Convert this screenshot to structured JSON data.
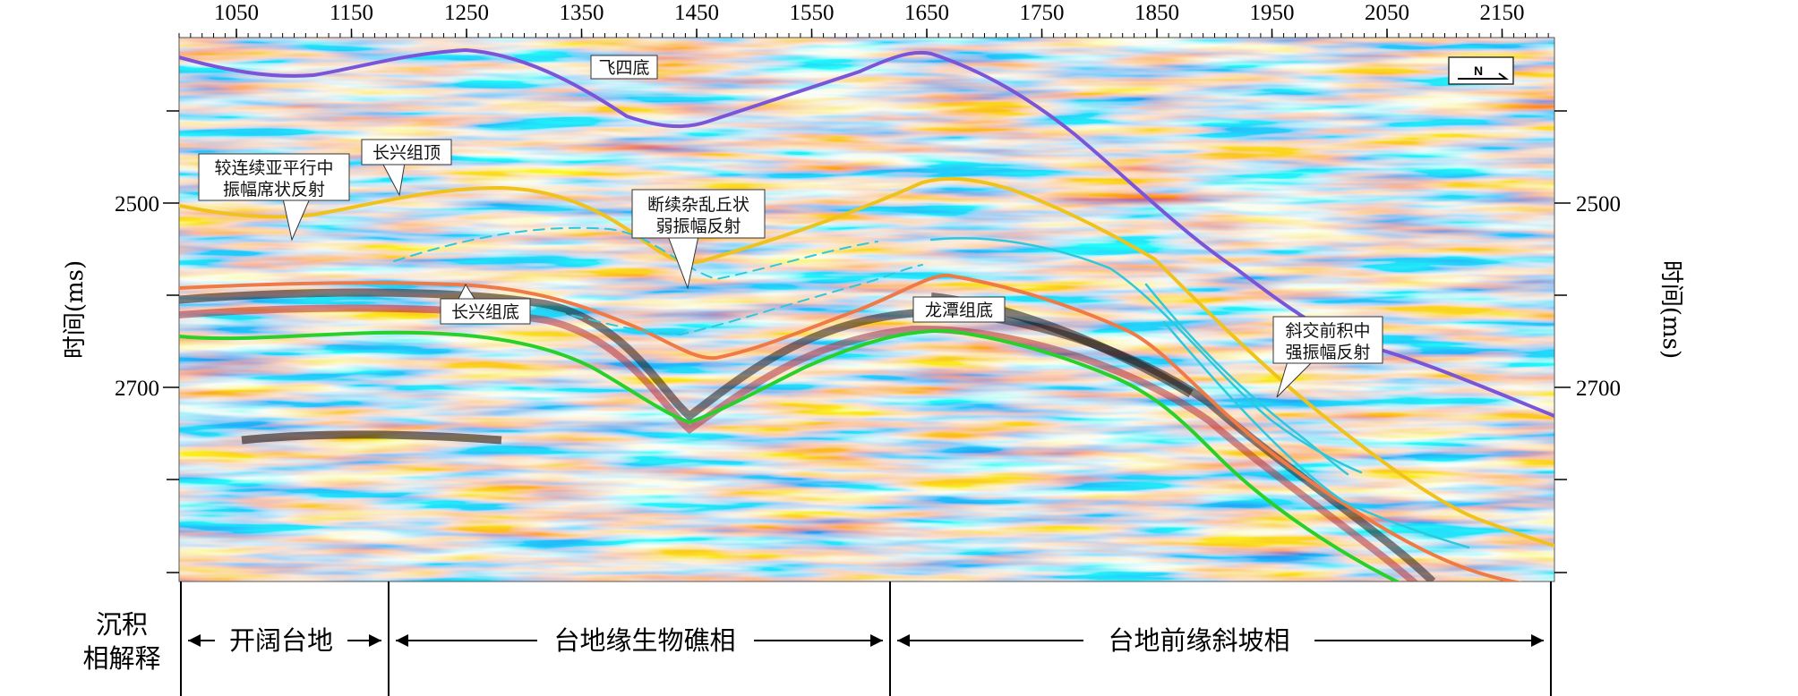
{
  "x_axis": {
    "ticks": [
      "1050",
      "1150",
      "1250",
      "1350",
      "1450",
      "1550",
      "1650",
      "1750",
      "1850",
      "1950",
      "2050",
      "2150"
    ]
  },
  "y_axis": {
    "title_left": "时间(ms)",
    "title_right": "时间(ms)",
    "ticks": [
      "2500",
      "2700"
    ]
  },
  "north_arrow": {
    "label": "N"
  },
  "horizon_labels": {
    "feisi": "飞四底",
    "changxing_top": "长兴组顶",
    "changxing_base": "长兴组底",
    "longtan": "龙潭组底"
  },
  "annotations": {
    "parallel": [
      "较连续亚平行中",
      "振幅席状反射"
    ],
    "mound": [
      "断续杂乱丘状",
      "弱振幅反射"
    ],
    "oblique": [
      "斜交前积中",
      "强振幅反射"
    ]
  },
  "facies": {
    "row_title": [
      "沉积",
      "相解释"
    ],
    "zones": [
      "开阔台地",
      "台地缘生物礁相",
      "台地前缘斜坡相"
    ]
  },
  "colors": {
    "feisi": "#7b55d8",
    "changxing_top": "#f0c21c",
    "changxing_base": "#f07a45",
    "longtan": "#2ad02a",
    "clinoform": "#2ec8dc"
  }
}
